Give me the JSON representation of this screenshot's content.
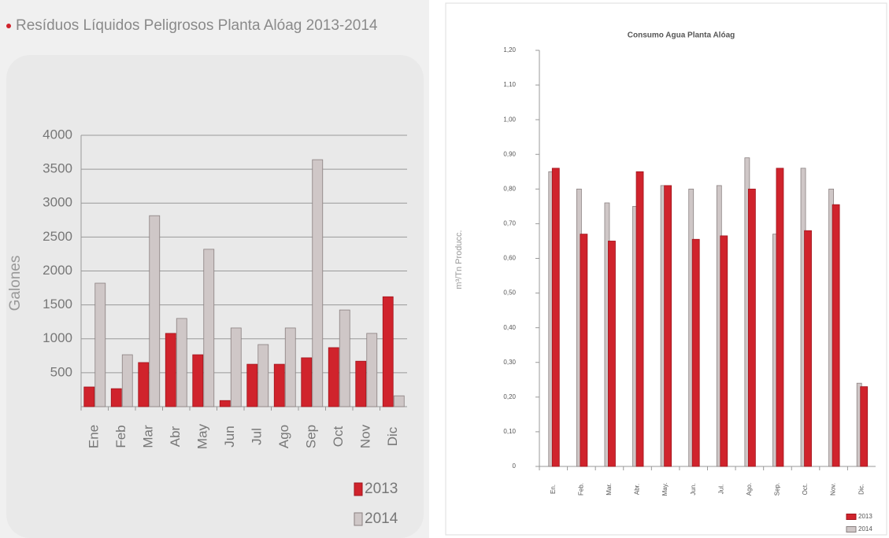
{
  "chart_data": [
    {
      "type": "bar",
      "title": "Resíduos Líquidos Peligrosos Planta Alóag 2013-2014",
      "y_label": "Galones",
      "categories": [
        "Ene",
        "Feb",
        "Mar",
        "Abr",
        "May",
        "Jun",
        "Jul",
        "Ago",
        "Sep",
        "Oct",
        "Nov",
        "Dic"
      ],
      "series": [
        {
          "name": "2013",
          "color": "#d0232c",
          "values": [
            290,
            265,
            650,
            1080,
            765,
            90,
            625,
            625,
            720,
            870,
            670,
            1620
          ]
        },
        {
          "name": "2014",
          "color": "#cfc7c7",
          "values": [
            1820,
            765,
            2815,
            1300,
            2320,
            1160,
            915,
            1160,
            3640,
            1425,
            1080,
            160
          ]
        }
      ],
      "ylim": [
        0,
        4000
      ],
      "yticks": [
        500,
        1000,
        1500,
        2000,
        2500,
        3000,
        3500,
        4000
      ],
      "grid": true,
      "legend": "bottom-right"
    },
    {
      "type": "bar",
      "title": "Consumo Agua Planta Alóag",
      "y_label": "m³/Tn Producc.",
      "categories": [
        "En.",
        "Feb.",
        "Mar.",
        "Abr.",
        "May.",
        "Jun.",
        "Jul.",
        "Ago.",
        "Sep.",
        "Oct.",
        "Nov.",
        "Dic."
      ],
      "series": [
        {
          "name": "2013",
          "color": "#d0232c",
          "values": [
            0.86,
            0.67,
            0.65,
            0.85,
            0.81,
            0.655,
            0.665,
            0.8,
            0.86,
            0.68,
            0.755,
            0.23
          ]
        },
        {
          "name": "2014",
          "color": "#cfc7c7",
          "values": [
            0.85,
            0.8,
            0.76,
            0.75,
            0.81,
            0.8,
            0.81,
            0.89,
            0.67,
            0.86,
            0.8,
            0.24
          ]
        }
      ],
      "ylim": [
        0,
        1.2
      ],
      "yticks": [
        {
          "value": 0,
          "label": "0"
        },
        {
          "value": 0.1,
          "label": "0,10"
        },
        {
          "value": 0.2,
          "label": "0,20"
        },
        {
          "value": 0.3,
          "label": "0,30"
        },
        {
          "value": 0.4,
          "label": "0,40"
        },
        {
          "value": 0.5,
          "label": "0,50"
        },
        {
          "value": 0.6,
          "label": "0,60"
        },
        {
          "value": 0.7,
          "label": "0,70"
        },
        {
          "value": 0.8,
          "label": "0,80"
        },
        {
          "value": 0.9,
          "label": "0,90"
        },
        {
          "value": 1.0,
          "label": "1,00"
        },
        {
          "value": 1.1,
          "label": "1,10"
        },
        {
          "value": 1.2,
          "label": "1,20"
        }
      ],
      "grid": false,
      "legend": "bottom-right"
    }
  ]
}
